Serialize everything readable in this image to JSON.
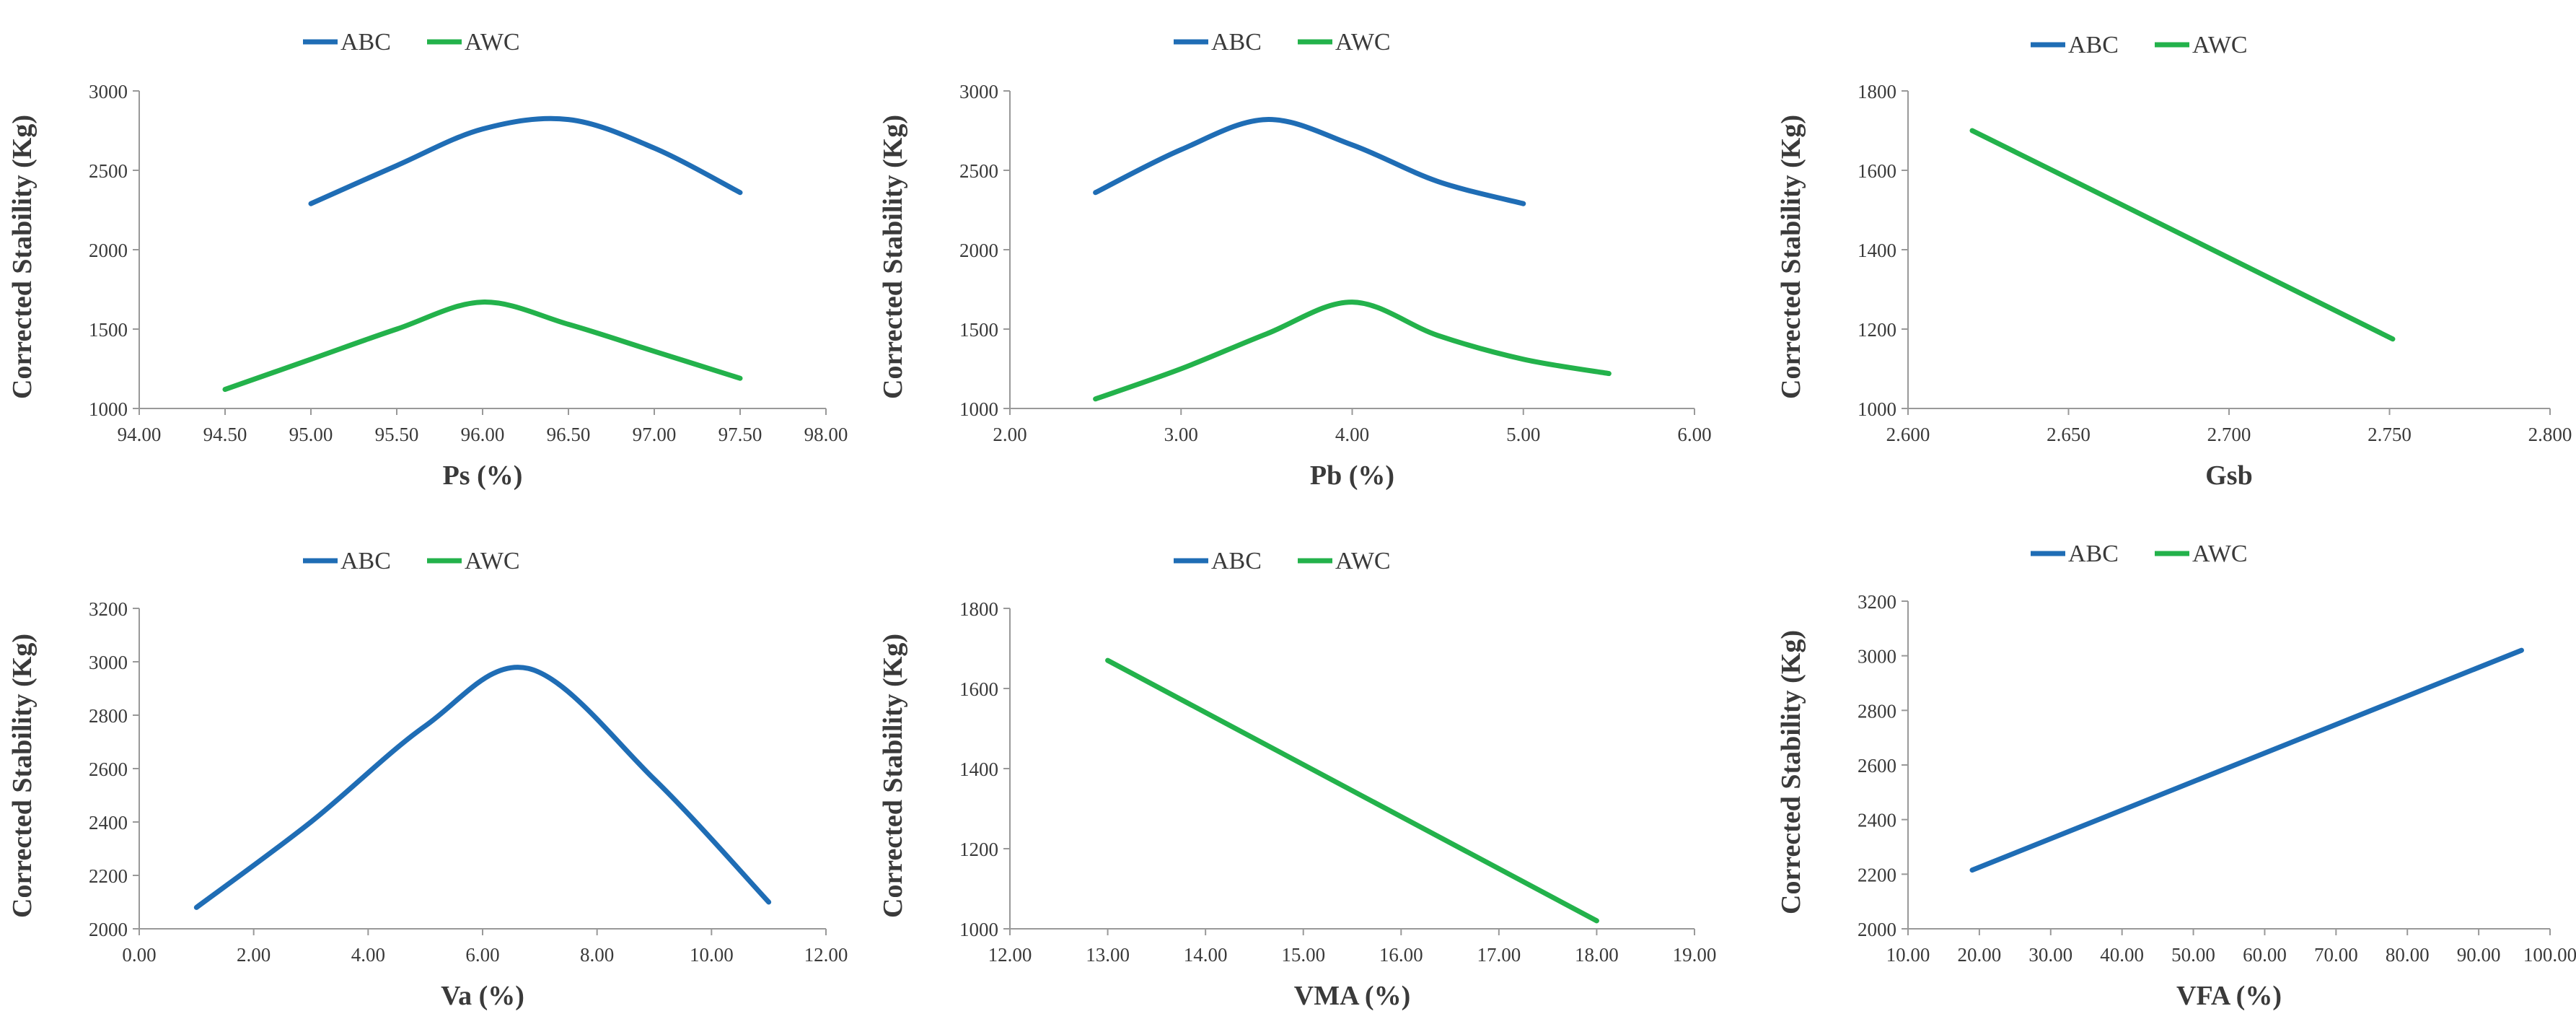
{
  "colors": {
    "ABC": "#1f6db5",
    "AWC": "#23b24b",
    "axis": "#999999"
  },
  "chart_data": [
    {
      "type": "line",
      "xlabel": "Ps (%)",
      "ylabel": "Corrected Stability (Kg)",
      "xlim": [
        94.0,
        98.0
      ],
      "ylim": [
        1000,
        3000
      ],
      "xticks": [
        94.0,
        94.5,
        95.0,
        95.5,
        96.0,
        96.5,
        97.0,
        97.5,
        98.0
      ],
      "yticks": [
        1000,
        1500,
        2000,
        2500,
        3000
      ],
      "xdecimals": 2,
      "legend": {
        "placement": "top-center",
        "entries": [
          "ABC",
          "AWC"
        ]
      },
      "series": [
        {
          "name": "ABC",
          "x": [
            95.0,
            95.5,
            96.0,
            96.5,
            97.0,
            97.5
          ],
          "y": [
            2290,
            2530,
            2760,
            2820,
            2640,
            2360
          ]
        },
        {
          "name": "AWC",
          "x": [
            94.5,
            95.0,
            95.5,
            96.0,
            96.5,
            97.0,
            97.5
          ],
          "y": [
            1120,
            1310,
            1500,
            1670,
            1530,
            1360,
            1190
          ]
        }
      ]
    },
    {
      "type": "line",
      "xlabel": "Pb (%)",
      "ylabel": "Corrected Stability (Kg)",
      "xlim": [
        2.0,
        6.0
      ],
      "ylim": [
        1000,
        3000
      ],
      "xticks": [
        2.0,
        3.0,
        4.0,
        5.0,
        6.0
      ],
      "yticks": [
        1000,
        1500,
        2000,
        2500,
        3000
      ],
      "xdecimals": 2,
      "legend": {
        "placement": "top-center",
        "entries": [
          "ABC",
          "AWC"
        ]
      },
      "series": [
        {
          "name": "ABC",
          "x": [
            2.5,
            3.0,
            3.5,
            4.0,
            4.5,
            5.0
          ],
          "y": [
            2360,
            2630,
            2820,
            2660,
            2430,
            2290
          ]
        },
        {
          "name": "AWC",
          "x": [
            2.5,
            3.0,
            3.5,
            4.0,
            4.5,
            5.0,
            5.5
          ],
          "y": [
            1060,
            1250,
            1470,
            1670,
            1460,
            1310,
            1220
          ]
        }
      ]
    },
    {
      "type": "line",
      "xlabel": "Gsb",
      "ylabel": "Corrected Stability (Kg)",
      "xlim": [
        2.6,
        2.8
      ],
      "ylim": [
        1000,
        1800
      ],
      "xticks": [
        2.6,
        2.65,
        2.7,
        2.75,
        2.8
      ],
      "yticks": [
        1000,
        1200,
        1400,
        1600,
        1800
      ],
      "xdecimals": 3,
      "legend": {
        "placement": "top-center",
        "entries": [
          "ABC",
          "AWC"
        ]
      },
      "series": [
        {
          "name": "AWC",
          "x": [
            2.62,
            2.751
          ],
          "y": [
            1700,
            1175
          ]
        }
      ]
    },
    {
      "type": "line",
      "xlabel": "Va (%)",
      "ylabel": "Corrected Stability (Kg)",
      "xlim": [
        0.0,
        12.0
      ],
      "ylim": [
        2000,
        3200
      ],
      "xticks": [
        0.0,
        2.0,
        4.0,
        6.0,
        8.0,
        10.0,
        12.0
      ],
      "yticks": [
        2000,
        2200,
        2400,
        2600,
        2800,
        3000,
        3200
      ],
      "xdecimals": 2,
      "legend": {
        "placement": "top-center",
        "entries": [
          "ABC",
          "AWC"
        ]
      },
      "series": [
        {
          "name": "ABC",
          "x": [
            1.0,
            3.0,
            5.0,
            6.8,
            9.0,
            11.0
          ],
          "y": [
            2080,
            2400,
            2760,
            2975,
            2560,
            2100
          ]
        }
      ]
    },
    {
      "type": "line",
      "xlabel": "VMA (%)",
      "ylabel": "Corrected Stability (Kg)",
      "xlim": [
        12.0,
        19.0
      ],
      "ylim": [
        1000,
        1800
      ],
      "xticks": [
        12.0,
        13.0,
        14.0,
        15.0,
        16.0,
        17.0,
        18.0,
        19.0
      ],
      "yticks": [
        1000,
        1200,
        1400,
        1600,
        1800
      ],
      "xdecimals": 2,
      "legend": {
        "placement": "top-center",
        "entries": [
          "ABC",
          "AWC"
        ]
      },
      "series": [
        {
          "name": "AWC",
          "x": [
            13.0,
            18.0
          ],
          "y": [
            1670,
            1020
          ]
        }
      ]
    },
    {
      "type": "line",
      "xlabel": "VFA (%)",
      "ylabel": "Corrected Stability (Kg)",
      "xlim": [
        10.0,
        100.0
      ],
      "ylim": [
        2000,
        3200
      ],
      "xticks": [
        10.0,
        20.0,
        30.0,
        40.0,
        50.0,
        60.0,
        70.0,
        80.0,
        90.0,
        100.0
      ],
      "yticks": [
        2000,
        2200,
        2400,
        2600,
        2800,
        3000,
        3200
      ],
      "xdecimals": 2,
      "legend": {
        "placement": "top-center",
        "entries": [
          "ABC",
          "AWC"
        ]
      },
      "series": [
        {
          "name": "ABC",
          "x": [
            19.0,
            96.0
          ],
          "y": [
            2215,
            3020
          ]
        }
      ]
    }
  ]
}
